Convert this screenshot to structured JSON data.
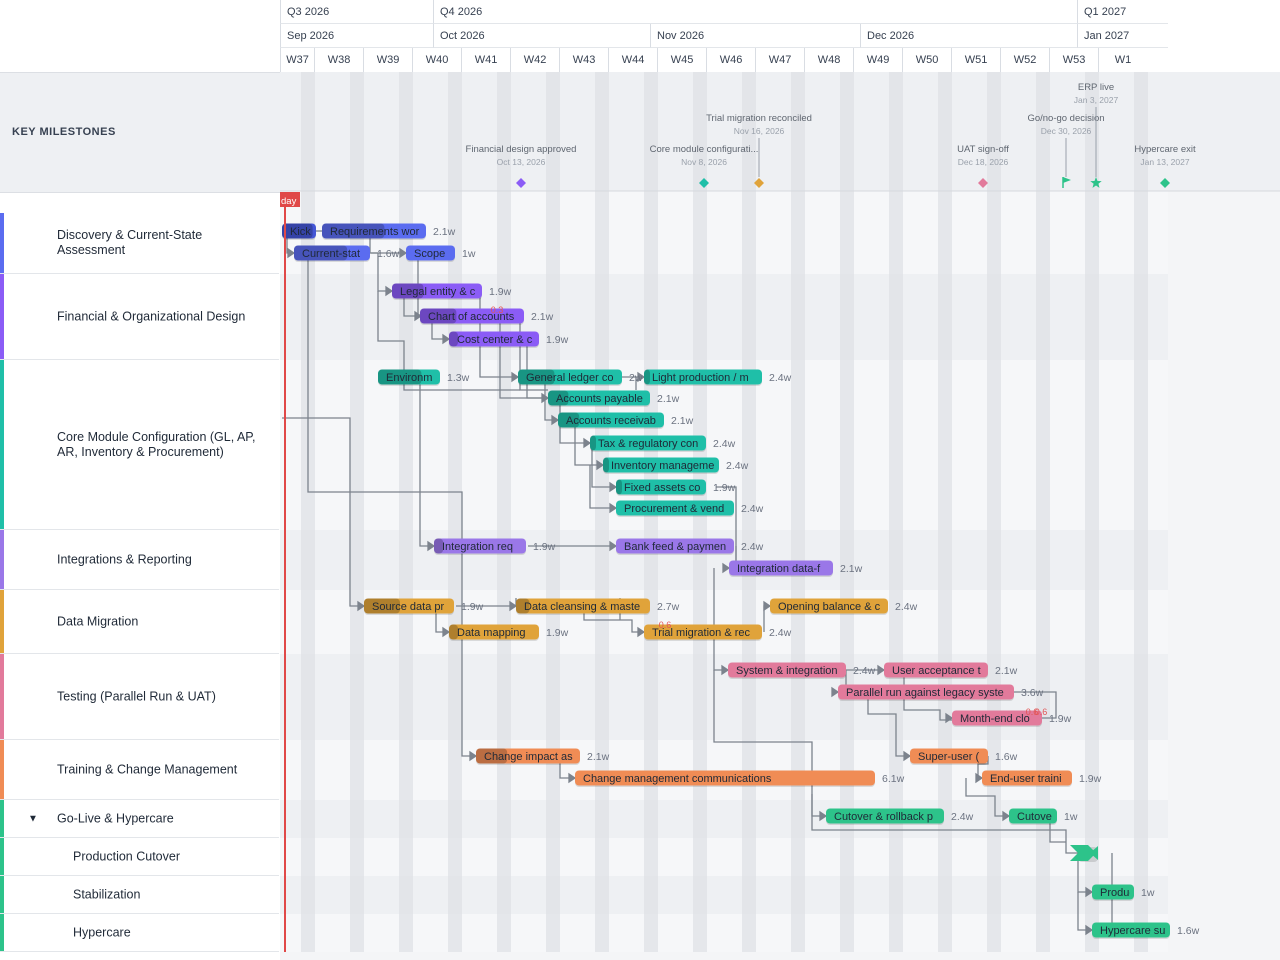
{
  "header": {
    "quarters": [
      {
        "label": "Q3 2026",
        "x0": 280,
        "x1": 433
      },
      {
        "label": "Q4 2026",
        "x0": 433,
        "x1": 1077
      },
      {
        "label": "Q1 2027",
        "x0": 1077,
        "x1": 1168
      }
    ],
    "months": [
      {
        "label": "Sep 2026",
        "x0": 280,
        "x1": 433
      },
      {
        "label": "Oct 2026",
        "x0": 433,
        "x1": 650
      },
      {
        "label": "Nov 2026",
        "x0": 650,
        "x1": 860
      },
      {
        "label": "Dec 2026",
        "x0": 860,
        "x1": 1077
      },
      {
        "label": "Jan 2027",
        "x0": 1077,
        "x1": 1168
      }
    ],
    "weeks": [
      "W37",
      "W38",
      "W39",
      "W40",
      "W41",
      "W42",
      "W43",
      "W44",
      "W45",
      "W46",
      "W47",
      "W48",
      "W49",
      "W50",
      "W51",
      "W52",
      "W53",
      "W1"
    ]
  },
  "milestones_label": "KEY MILESTONES",
  "today_label": "day",
  "groups": [
    {
      "name": "Discovery & Current-State Assessment",
      "color": "#5b6cf0"
    },
    {
      "name": "Financial & Organizational Design",
      "color": "#8b5cf6"
    },
    {
      "name": "Core Module Configuration (GL, AP, AR, Inventory & Procurement)",
      "color": "#1fbfa8"
    },
    {
      "name": "Integrations & Reporting",
      "color": "#9a77e8"
    },
    {
      "name": "Data Migration",
      "color": "#e0a33a"
    },
    {
      "name": "Testing (Parallel Run & UAT)",
      "color": "#e27a9b"
    },
    {
      "name": "Training & Change Management",
      "color": "#f08c55"
    },
    {
      "name": "Go-Live & Hypercare",
      "color": "#2dc38a"
    },
    {
      "name": "Production Cutover",
      "color": "#2dc38a"
    },
    {
      "name": "Stabilization",
      "color": "#2dc38a"
    },
    {
      "name": "Hypercare",
      "color": "#2dc38a"
    }
  ],
  "milestones": [
    {
      "name": "Financial design approved",
      "date": "Oct 13, 2026",
      "color": "#8b5cf6",
      "shape": "diamond"
    },
    {
      "name": "Core module configurati...",
      "date": "Nov 8, 2026",
      "color": "#1fbfa8",
      "shape": "diamond"
    },
    {
      "name": "Trial migration reconciled",
      "date": "Nov 16, 2026",
      "color": "#e0a33a",
      "shape": "diamond"
    },
    {
      "name": "UAT sign-off",
      "date": "Dec 18, 2026",
      "color": "#e27a9b",
      "shape": "diamond"
    },
    {
      "name": "Go/no-go decision",
      "date": "Dec 30, 2026",
      "color": "#2dc38a",
      "shape": "flag"
    },
    {
      "name": "ERP live",
      "date": "Jan 3, 2027",
      "color": "#2dc38a",
      "shape": "star"
    },
    {
      "name": "Hypercare exit",
      "date": "Jan 13, 2027",
      "color": "#2dc38a",
      "shape": "diamond"
    }
  ],
  "tasks": [
    {
      "label": "Kick",
      "dur": "",
      "color": "#4456d6"
    },
    {
      "label": "Requirements wor",
      "dur": "2.1w",
      "color": "#5b6cf0"
    },
    {
      "label": "Current-stat",
      "dur": "1.6w",
      "color": "#5b6cf0"
    },
    {
      "label": "Scope",
      "dur": "1w",
      "color": "#5b6cf0"
    },
    {
      "label": "Legal entity & c",
      "dur": "1.9w",
      "color": "#8b5cf6"
    },
    {
      "label": "Chart of accounts",
      "dur": "2.1w",
      "color": "#8b5cf6"
    },
    {
      "label": "Cost center & c",
      "dur": "1.9w",
      "color": "#8b5cf6"
    },
    {
      "label": "Environm",
      "dur": "1.3w",
      "color": "#1fbfa8"
    },
    {
      "label": "General ledger co",
      "dur": "2w",
      "color": "#1fbfa8"
    },
    {
      "label": "Light production / m",
      "dur": "2.4w",
      "color": "#1fbfa8"
    },
    {
      "label": "Accounts payable",
      "dur": "2.1w",
      "color": "#1fbfa8"
    },
    {
      "label": "Accounts receivab",
      "dur": "2.1w",
      "color": "#1fbfa8"
    },
    {
      "label": "Tax & regulatory con",
      "dur": "2.4w",
      "color": "#1fbfa8"
    },
    {
      "label": "Inventory manageme",
      "dur": "2.4w",
      "color": "#1fbfa8"
    },
    {
      "label": "Fixed assets co",
      "dur": "1.9w",
      "color": "#1fbfa8"
    },
    {
      "label": "Procurement & vend",
      "dur": "2.4w",
      "color": "#1fbfa8"
    },
    {
      "label": "Integration req",
      "dur": "1.9w",
      "color": "#9a77e8"
    },
    {
      "label": "Bank feed & paymen",
      "dur": "2.4w",
      "color": "#9a77e8"
    },
    {
      "label": "Integration data-f",
      "dur": "2.1w",
      "color": "#9a77e8"
    },
    {
      "label": "Source data pr",
      "dur": "1.9w",
      "color": "#e0a33a"
    },
    {
      "label": "Data cleansing & maste",
      "dur": "2.7w",
      "color": "#e0a33a"
    },
    {
      "label": "Opening balance & c",
      "dur": "2.4w",
      "color": "#e0a33a"
    },
    {
      "label": "Data mapping",
      "dur": "1.9w",
      "color": "#e0a33a"
    },
    {
      "label": "Trial migration & rec",
      "dur": "2.4w",
      "color": "#e0a33a"
    },
    {
      "label": "System & integration",
      "dur": "2.4w",
      "color": "#e27a9b"
    },
    {
      "label": "User acceptance t",
      "dur": "2.1w",
      "color": "#e27a9b"
    },
    {
      "label": "Parallel run against legacy syste",
      "dur": "3.6w",
      "color": "#e27a9b"
    },
    {
      "label": "Month-end clo",
      "dur": "1.9w",
      "color": "#e27a9b"
    },
    {
      "label": "Change impact as",
      "dur": "2.1w",
      "color": "#f08c55"
    },
    {
      "label": "Change management communications",
      "dur": "6.1w",
      "color": "#f08c55"
    },
    {
      "label": "Super-user (",
      "dur": "1.6w",
      "color": "#f08c55"
    },
    {
      "label": "End-user traini",
      "dur": "1.9w",
      "color": "#f08c55"
    },
    {
      "label": "Cutover & rollback p",
      "dur": "2.4w",
      "color": "#2dc38a"
    },
    {
      "label": "Cutove",
      "dur": "1w",
      "color": "#2dc38a"
    },
    {
      "label": "",
      "dur": "",
      "color": "#2dc38a"
    },
    {
      "label": "Produc",
      "dur": "1w",
      "color": "#2dc38a"
    },
    {
      "label": "Hypercare su",
      "dur": "1.6w",
      "color": "#2dc38a"
    }
  ],
  "slack_labels": [
    "0.3",
    "0.6",
    "0.6",
    "0.6"
  ]
}
